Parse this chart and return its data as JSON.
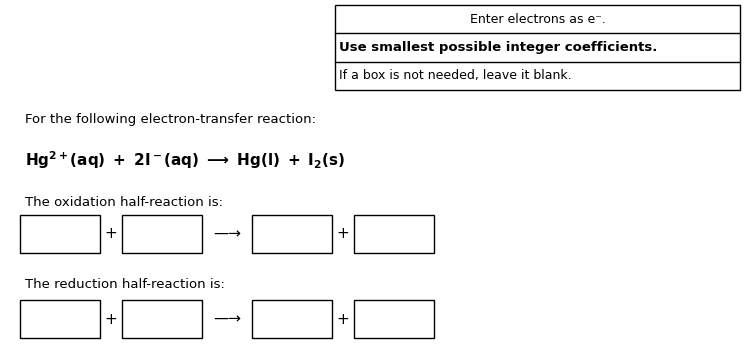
{
  "bg_color": "#ffffff",
  "fig_w": 7.45,
  "fig_h": 3.61,
  "dpi": 100,
  "instr_box": {
    "line1": "Enter electrons as e⁻.",
    "line2": "Use smallest possible integer coefficients.",
    "line3": "If a box is not needed, leave it blank."
  },
  "intro_text": "For the following electron-transfer reaction:",
  "oxidation_label": "The oxidation half-reaction is:",
  "reduction_label": "The reduction half-reaction is:",
  "font_size_small": 9.5,
  "font_size_reaction": 11,
  "font_size_label": 9.5,
  "font_size_bold": 10
}
